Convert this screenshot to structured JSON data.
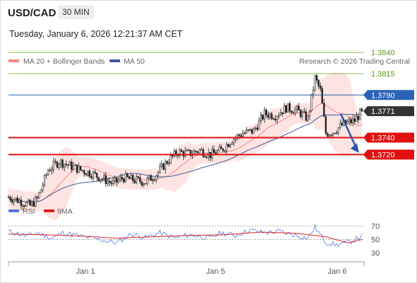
{
  "header": {
    "symbol": "USD/CAD",
    "timeframe": "30 MIN",
    "datetime": "Tuesday, January 6, 2026 12:21:37 AM CET"
  },
  "legend": {
    "ma20_label": "MA 20 + Bollinger Bands",
    "ma50_label": "MA 50",
    "copyright": "Research © 2026 Trading Central",
    "rsi_label": "RSI",
    "rsi_ma_label": "9MA"
  },
  "colors": {
    "resistance_green": "#8bc34a",
    "pivot_blue": "#2962b8",
    "support_red": "#e01010",
    "ma20": "#f28b82",
    "ma50": "#3d5a9a",
    "bollinger_fill": "#fde4e2",
    "candle": "#222222",
    "rsi": "#5577dd",
    "rsi_ma": "#dd2222",
    "current_price_bg": "#333333"
  },
  "chart_data": {
    "type": "candlestick",
    "instrument": "USD/CAD",
    "timeframe": "30 MIN",
    "y_range": [
      1.36,
      1.386
    ],
    "x_tick_labels": [
      "Jan 1",
      "Jan 5",
      "Jan 6"
    ],
    "current_price": "1.3771",
    "levels": [
      {
        "label": "1.3840",
        "value": 1.384,
        "kind": "resistance"
      },
      {
        "label": "1.3815",
        "value": 1.3815,
        "kind": "resistance"
      },
      {
        "label": "1.3790",
        "value": 1.379,
        "kind": "pivot"
      },
      {
        "label": "1.3740",
        "value": 1.374,
        "kind": "support"
      },
      {
        "label": "1.3720",
        "value": 1.372,
        "kind": "support"
      }
    ],
    "price_anchors": [
      [
        0,
        1.367
      ],
      [
        6,
        1.3666
      ],
      [
        12,
        1.366
      ],
      [
        16,
        1.3668
      ],
      [
        22,
        1.3702
      ],
      [
        28,
        1.3712
      ],
      [
        34,
        1.3707
      ],
      [
        40,
        1.3702
      ],
      [
        46,
        1.3698
      ],
      [
        52,
        1.3692
      ],
      [
        58,
        1.3686
      ],
      [
        64,
        1.3693
      ],
      [
        70,
        1.369
      ],
      [
        76,
        1.3688
      ],
      [
        82,
        1.3697
      ],
      [
        88,
        1.3712
      ],
      [
        94,
        1.3723
      ],
      [
        100,
        1.3721
      ],
      [
        106,
        1.3725
      ],
      [
        112,
        1.372
      ],
      [
        118,
        1.3725
      ],
      [
        124,
        1.3738
      ],
      [
        130,
        1.3745
      ],
      [
        136,
        1.3748
      ],
      [
        142,
        1.3768
      ],
      [
        148,
        1.3766
      ],
      [
        154,
        1.3775
      ],
      [
        160,
        1.3772
      ],
      [
        166,
        1.3762
      ],
      [
        170,
        1.381
      ],
      [
        173,
        1.3795
      ],
      [
        176,
        1.3745
      ],
      [
        180,
        1.3747
      ],
      [
        186,
        1.3756
      ],
      [
        192,
        1.376
      ],
      [
        196,
        1.3771
      ]
    ],
    "rsi_axis": [
      30,
      50,
      70
    ],
    "rsi_anchors": [
      [
        0,
        62
      ],
      [
        10,
        55
      ],
      [
        16,
        60
      ],
      [
        24,
        52
      ],
      [
        30,
        60
      ],
      [
        40,
        55
      ],
      [
        50,
        50
      ],
      [
        60,
        45
      ],
      [
        68,
        58
      ],
      [
        76,
        53
      ],
      [
        84,
        60
      ],
      [
        92,
        52
      ],
      [
        100,
        57
      ],
      [
        112,
        52
      ],
      [
        118,
        60
      ],
      [
        126,
        56
      ],
      [
        134,
        64
      ],
      [
        142,
        60
      ],
      [
        150,
        62
      ],
      [
        158,
        57
      ],
      [
        166,
        52
      ],
      [
        170,
        68
      ],
      [
        176,
        46
      ],
      [
        182,
        42
      ],
      [
        190,
        47
      ],
      [
        196,
        55
      ]
    ],
    "rsi_ma_anchors": [
      [
        0,
        58
      ],
      [
        20,
        57
      ],
      [
        40,
        55
      ],
      [
        60,
        52
      ],
      [
        80,
        54
      ],
      [
        100,
        56
      ],
      [
        120,
        57
      ],
      [
        140,
        61
      ],
      [
        160,
        59
      ],
      [
        176,
        54
      ],
      [
        188,
        45
      ],
      [
        196,
        50
      ]
    ]
  }
}
